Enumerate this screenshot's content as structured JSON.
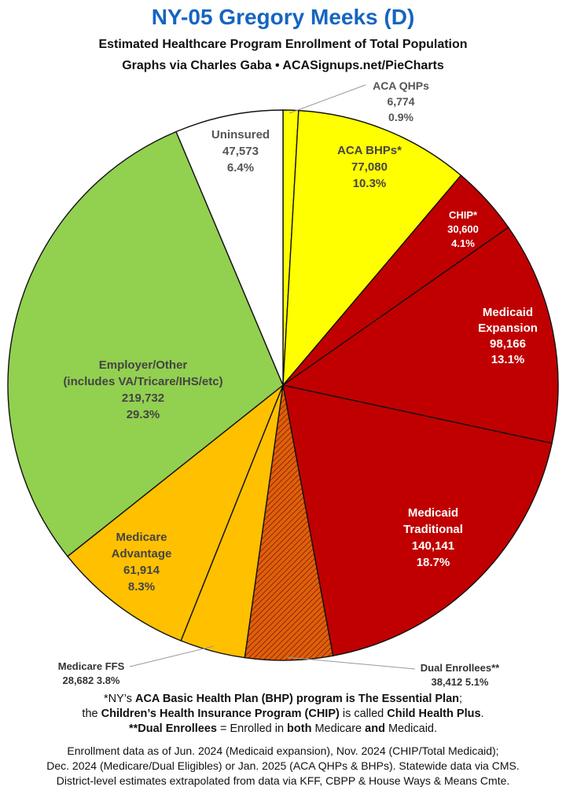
{
  "header": {
    "title": "NY-05 Gregory Meeks (D)",
    "subtitle": "Estimated Healthcare Program Enrollment of Total Population",
    "credit": "Graphs via Charles Gaba   •   ACASignups.net/PieCharts"
  },
  "chart_data": {
    "type": "pie",
    "title": "NY-05 Gregory Meeks (D)",
    "slices": [
      {
        "label": "ACA QHPs",
        "value": 6774,
        "percent": "0.9%",
        "display_value": "6,774",
        "color": "#ffff00"
      },
      {
        "label": "ACA BHPs*",
        "value": 77080,
        "percent": "10.3%",
        "display_value": "77,080",
        "color": "#ffff00"
      },
      {
        "label": "CHIP*",
        "value": 30600,
        "percent": "4.1%",
        "display_value": "30,600",
        "color": "#c00000"
      },
      {
        "label": "Medicaid Expansion",
        "value": 98166,
        "percent": "13.1%",
        "display_value": "98,166",
        "color": "#c00000"
      },
      {
        "label": "Medicaid Traditional",
        "value": 140141,
        "percent": "18.7%",
        "display_value": "140,141",
        "color": "#c00000"
      },
      {
        "label": "Dual Enrollees**",
        "value": 38412,
        "percent": "5.1%",
        "display_value": "38,412",
        "color": "#e0600a",
        "hatched": true
      },
      {
        "label": "Medicare FFS",
        "value": 28682,
        "percent": "3.8%",
        "display_value": "28,682",
        "color": "#ffc000"
      },
      {
        "label": "Medicare Advantage",
        "value": 61914,
        "percent": "8.3%",
        "display_value": "61,914",
        "color": "#ffc000"
      },
      {
        "label": "Employer/Other (includes VA/Tricare/IHS/etc)",
        "value": 219732,
        "percent": "29.3%",
        "display_value": "219,732",
        "color": "#92d050"
      },
      {
        "label": "Uninsured",
        "value": 47573,
        "percent": "6.4%",
        "display_value": "47,573",
        "color": "#ffffff"
      }
    ]
  },
  "labels": {
    "aca_qhp": [
      "ACA QHPs",
      "6,774",
      "0.9%"
    ],
    "aca_bhp": [
      "ACA BHPs*",
      "77,080",
      "10.3%"
    ],
    "chip": [
      "CHIP*",
      "30,600",
      "4.1%"
    ],
    "medicaid_exp": [
      "Medicaid",
      "Expansion",
      "98,166",
      "13.1%"
    ],
    "medicaid_trad": [
      "Medicaid",
      "Traditional",
      "140,141",
      "18.7%"
    ],
    "dual": [
      "Dual Enrollees**",
      "38,412 5.1%"
    ],
    "medicare_ffs": [
      "Medicare FFS",
      "28,682 3.8%"
    ],
    "medicare_adv": [
      "Medicare",
      "Advantage",
      "61,914",
      "8.3%"
    ],
    "employer": [
      "Employer/Other",
      "(includes VA/Tricare/IHS/etc)",
      "219,732",
      "29.3%"
    ],
    "uninsured": [
      "Uninsured",
      "47,573",
      "6.4%"
    ]
  },
  "footnotes": {
    "line1_a": "*NY’s ",
    "line1_b": "ACA Basic Health Plan (BHP) program is The Essential Plan",
    "line1_c": ";",
    "line2_a": "the ",
    "line2_b": "Children’s Health Insurance Program (CHIP)",
    "line2_c": " is called ",
    "line2_d": "Child Health Plus",
    "line2_e": ".",
    "line3_a": "**Dual Enrollees",
    "line3_b": " = Enrolled in ",
    "line3_c": "both",
    "line3_d": " Medicare ",
    "line3_e": "and",
    "line3_f": " Medicaid."
  },
  "footer": {
    "line1": "Enrollment data as of Jun. 2024 (Medicaid expansion), Nov. 2024 (CHIP/Total Medicaid);",
    "line2": "Dec. 2024 (Medicare/Dual Eligibles) or Jan. 2025 (ACA QHPs & BHPs). Statewide data via CMS.",
    "line3": "District-level estimates extrapolated from data via KFF, CBPP & House Ways & Means Cmte."
  }
}
